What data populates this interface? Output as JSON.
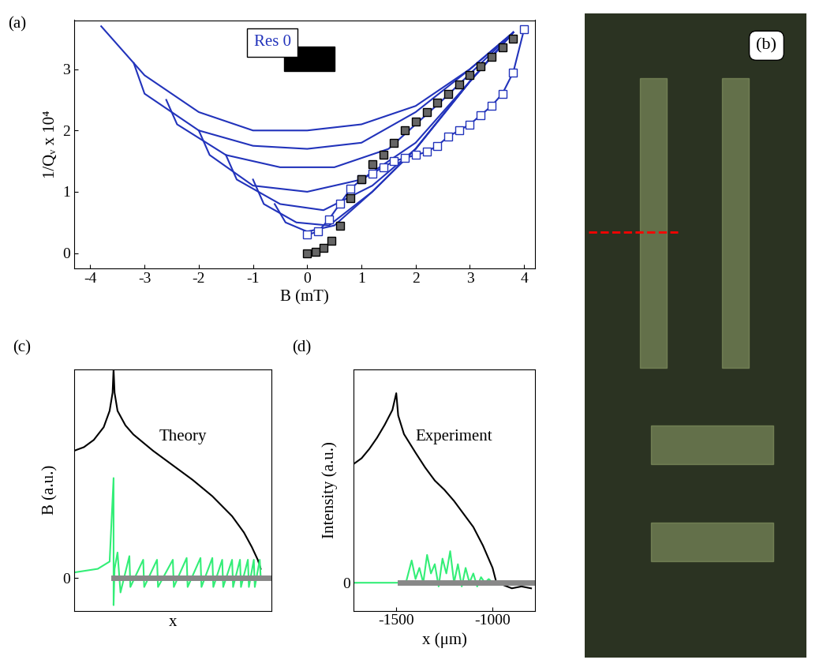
{
  "chart_data": [
    {
      "type": "line",
      "panel_label": "(a)",
      "annotation": "Res 0",
      "x_label": "B (mT)",
      "y_label": "1/Qᵥ x 10⁴",
      "xlim": [
        -4.3,
        4.2
      ],
      "ylim": [
        -0.25,
        3.8
      ],
      "xticks": [
        -4,
        -3,
        -2,
        -1,
        0,
        1,
        2,
        3,
        4
      ],
      "yticks": [
        0,
        1,
        2,
        3
      ],
      "series": [
        {
          "color": "#2233bb",
          "x": [
            -3.8,
            -3,
            -2,
            -1,
            0,
            1,
            2,
            3,
            3.8
          ],
          "values": [
            3.7,
            2.9,
            2.3,
            2.0,
            2.0,
            2.1,
            2.4,
            3.0,
            3.6
          ]
        },
        {
          "color": "#2233bb",
          "x": [
            -3.2,
            -3.0,
            -2,
            -1,
            0,
            1,
            2,
            3,
            3.8
          ],
          "values": [
            3.1,
            2.6,
            2.0,
            1.75,
            1.7,
            1.8,
            2.3,
            3.0,
            3.6
          ]
        },
        {
          "color": "#2233bb",
          "x": [
            -2.6,
            -2.4,
            -1.5,
            -0.5,
            0.5,
            1.5,
            2.5,
            3.8
          ],
          "values": [
            2.5,
            2.1,
            1.6,
            1.4,
            1.4,
            1.7,
            2.5,
            3.6
          ]
        },
        {
          "color": "#2233bb",
          "x": [
            -2.0,
            -1.8,
            -1,
            0,
            1,
            2,
            3,
            3.8
          ],
          "values": [
            2.0,
            1.6,
            1.1,
            1.0,
            1.2,
            1.8,
            2.8,
            3.6
          ]
        },
        {
          "color": "#2233bb",
          "x": [
            -1.5,
            -1.3,
            -0.5,
            0.3,
            1.2,
            2,
            3,
            3.8
          ],
          "values": [
            1.6,
            1.2,
            0.8,
            0.7,
            1.1,
            1.7,
            2.8,
            3.6
          ]
        },
        {
          "color": "#2233bb",
          "x": [
            -1.0,
            -0.8,
            -0.2,
            0.4,
            1.2,
            2,
            3,
            3.8
          ],
          "values": [
            1.2,
            0.8,
            0.5,
            0.45,
            1.0,
            1.7,
            2.8,
            3.6
          ]
        },
        {
          "color": "#2233bb",
          "x": [
            -0.6,
            -0.4,
            0,
            0.5,
            1.2,
            2,
            3,
            3.8
          ],
          "values": [
            0.8,
            0.5,
            0.35,
            0.45,
            1.0,
            1.7,
            2.8,
            3.6
          ]
        },
        {
          "color": "#2233bb",
          "marker": "square_open",
          "line_style": "solid",
          "x": [
            0,
            0.2,
            0.4,
            0.6,
            0.8,
            1.0,
            1.2,
            1.4,
            1.6,
            1.8,
            2.0,
            2.2,
            2.4,
            2.6,
            2.8,
            3.0,
            3.2,
            3.4,
            3.6,
            3.8,
            4.0
          ],
          "values": [
            0.3,
            0.35,
            0.55,
            0.8,
            1.05,
            1.2,
            1.3,
            1.4,
            1.5,
            1.55,
            1.6,
            1.65,
            1.75,
            1.9,
            2.0,
            2.1,
            2.25,
            2.4,
            2.6,
            2.95,
            3.65
          ]
        },
        {
          "color": "#666666",
          "marker": "square",
          "line_style": "none",
          "x": [
            0,
            0.15,
            0.3,
            0.45,
            0.6,
            0.8,
            1.0,
            1.2,
            1.4,
            1.6,
            1.8,
            2.0,
            2.2,
            2.4,
            2.6,
            2.8,
            3.0,
            3.2,
            3.4,
            3.6,
            3.8
          ],
          "values": [
            0,
            0.02,
            0.08,
            0.2,
            0.45,
            0.9,
            1.2,
            1.45,
            1.6,
            1.8,
            2.0,
            2.15,
            2.3,
            2.45,
            2.6,
            2.75,
            2.9,
            3.05,
            3.2,
            3.35,
            3.5
          ]
        }
      ]
    },
    {
      "type": "image",
      "panel_label": "(b)"
    },
    {
      "type": "line",
      "panel_label": "(c)",
      "annotation": "Theory",
      "x_label": "x",
      "y_label": "B (a.u.)",
      "tick_labels": "y",
      "xlim": [
        0,
        1
      ],
      "ylim": [
        -0.18,
        1.15
      ],
      "xticks": [],
      "yticks": [
        0
      ],
      "series": [
        {
          "color": "#000000",
          "x": [
            0,
            0.05,
            0.1,
            0.15,
            0.18,
            0.195,
            0.2,
            0.205,
            0.22,
            0.26,
            0.3,
            0.4,
            0.5,
            0.6,
            0.7,
            0.8,
            0.86,
            0.9,
            0.93,
            0.945
          ],
          "values": [
            0.7,
            0.72,
            0.76,
            0.83,
            0.92,
            1.02,
            1.15,
            1.02,
            0.92,
            0.84,
            0.79,
            0.7,
            0.62,
            0.54,
            0.45,
            0.34,
            0.25,
            0.17,
            0.1,
            0.05
          ]
        },
        {
          "color": "#33ee77",
          "x": [
            0,
            0.12,
            0.18,
            0.2,
            0.2,
            0.205,
            0.22,
            0.235,
            0.28,
            0.285,
            0.35,
            0.355,
            0.42,
            0.425,
            0.5,
            0.505,
            0.57,
            0.575,
            0.64,
            0.645,
            0.7,
            0.705,
            0.75,
            0.755,
            0.8,
            0.805,
            0.84,
            0.845,
            0.88,
            0.885,
            0.91,
            0.915,
            0.94,
            0.945
          ],
          "values": [
            0.03,
            0.05,
            0.09,
            0.55,
            -0.15,
            0.05,
            0.14,
            -0.08,
            0.12,
            -0.05,
            0.1,
            -0.05,
            0.1,
            -0.05,
            0.1,
            -0.05,
            0.11,
            -0.05,
            0.11,
            -0.05,
            0.11,
            -0.05,
            0.1,
            -0.05,
            0.1,
            -0.05,
            0.1,
            -0.05,
            0.1,
            -0.05,
            0.1,
            -0.05,
            0.1,
            0
          ]
        },
        {
          "color": "#888888",
          "x": [
            0.2,
            1.0
          ],
          "values": [
            0,
            0
          ]
        }
      ]
    },
    {
      "type": "line",
      "panel_label": "(d)",
      "annotation": "Experiment",
      "x_label": "x (μm)",
      "y_label": "Intensity (a.u.)",
      "xlim": [
        -1720,
        -780
      ],
      "ylim": [
        -0.15,
        1.15
      ],
      "xticks": [
        -1500,
        -1000
      ],
      "yticks": [
        0
      ],
      "series": [
        {
          "color": "#000000",
          "x": [
            -1720,
            -1680,
            -1640,
            -1600,
            -1560,
            -1520,
            -1500,
            -1490,
            -1460,
            -1400,
            -1350,
            -1300,
            -1250,
            -1200,
            -1150,
            -1100,
            -1050,
            -1000,
            -980,
            -950,
            -900,
            -850,
            -800
          ],
          "values": [
            0.64,
            0.67,
            0.72,
            0.78,
            0.85,
            0.93,
            1.02,
            0.9,
            0.8,
            0.7,
            0.62,
            0.55,
            0.5,
            0.44,
            0.37,
            0.3,
            0.2,
            0.08,
            0.0,
            -0.01,
            -0.03,
            -0.02,
            -0.03
          ]
        },
        {
          "color": "#33ee77",
          "x": [
            -1720,
            -1500,
            -1450,
            -1440,
            -1420,
            -1400,
            -1380,
            -1360,
            -1340,
            -1320,
            -1300,
            -1280,
            -1260,
            -1240,
            -1220,
            -1200,
            -1180,
            -1160,
            -1140,
            -1120,
            -1100,
            -1080,
            -1060,
            -1040,
            -1020,
            -1000,
            -950
          ],
          "values": [
            0,
            0,
            0,
            0.04,
            0.12,
            0.02,
            0.08,
            0.0,
            0.15,
            0.05,
            0.1,
            -0.02,
            0.13,
            0.05,
            0.17,
            0.0,
            0.1,
            -0.02,
            0.08,
            0.0,
            0.05,
            -0.02,
            0.03,
            0.0,
            0.02,
            0,
            0
          ]
        },
        {
          "color": "#888888",
          "x": [
            -1480,
            -780
          ],
          "values": [
            0,
            0
          ]
        }
      ]
    }
  ]
}
